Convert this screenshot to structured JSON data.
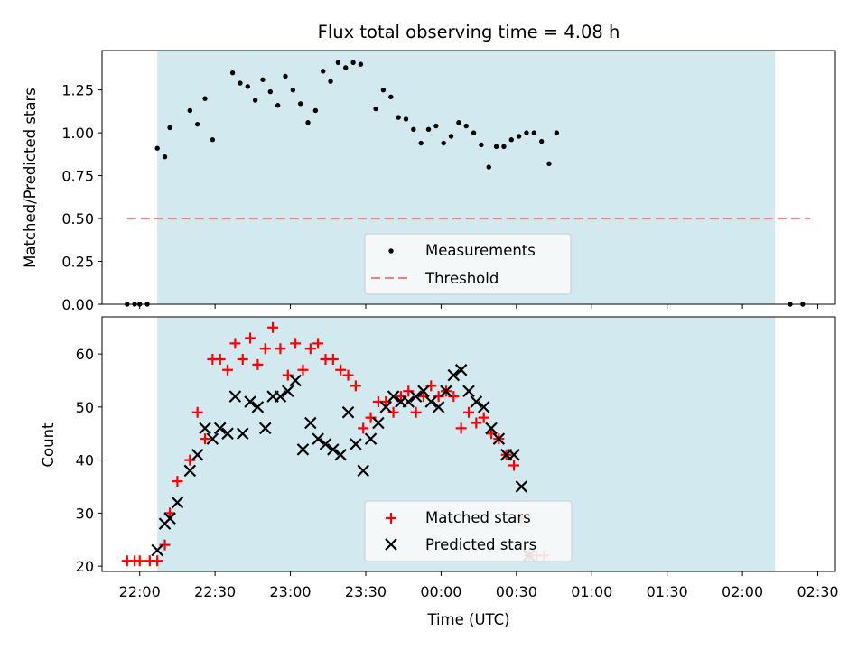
{
  "chart_data": [
    {
      "type": "scatter",
      "title": "Flux total observing time = 4.08 h",
      "ylabel": "Matched/Predicted stars",
      "xlim": [
        "21:45",
        "02:37"
      ],
      "ylim": [
        0,
        1.48
      ],
      "yticks": [
        "0.00",
        "0.25",
        "0.50",
        "0.75",
        "1.00",
        "1.25"
      ],
      "shaded_span": {
        "start": "22:07",
        "end": "02:13",
        "color": "#d3e9f0"
      },
      "threshold": {
        "value": 0.5,
        "from": "21:55",
        "to": "02:27",
        "color": "#f08080",
        "label": "Threshold"
      },
      "legend": {
        "position": "bottom-center",
        "entries": [
          "Measurements",
          "Threshold"
        ]
      },
      "series": [
        {
          "name": "Measurements",
          "marker": "dot",
          "color": "#000000",
          "points": [
            [
              "21:55",
              0.0
            ],
            [
              "21:58",
              0.0
            ],
            [
              "22:00",
              0.0
            ],
            [
              "22:03",
              0.0
            ],
            [
              "22:07",
              0.91
            ],
            [
              "22:10",
              0.86
            ],
            [
              "22:12",
              1.03
            ],
            [
              "22:20",
              1.13
            ],
            [
              "22:23",
              1.05
            ],
            [
              "22:26",
              1.2
            ],
            [
              "22:29",
              0.96
            ],
            [
              "22:37",
              1.35
            ],
            [
              "22:40",
              1.29
            ],
            [
              "22:43",
              1.27
            ],
            [
              "22:46",
              1.19
            ],
            [
              "22:49",
              1.31
            ],
            [
              "22:52",
              1.24
            ],
            [
              "22:55",
              1.16
            ],
            [
              "22:58",
              1.33
            ],
            [
              "23:01",
              1.25
            ],
            [
              "23:04",
              1.17
            ],
            [
              "23:07",
              1.06
            ],
            [
              "23:10",
              1.13
            ],
            [
              "23:13",
              1.36
            ],
            [
              "23:16",
              1.3
            ],
            [
              "23:19",
              1.41
            ],
            [
              "23:22",
              1.38
            ],
            [
              "23:25",
              1.41
            ],
            [
              "23:28",
              1.4
            ],
            [
              "23:34",
              1.14
            ],
            [
              "23:37",
              1.25
            ],
            [
              "23:40",
              1.21
            ],
            [
              "23:43",
              1.09
            ],
            [
              "23:46",
              1.08
            ],
            [
              "23:49",
              1.02
            ],
            [
              "23:52",
              0.94
            ],
            [
              "23:55",
              1.02
            ],
            [
              "23:58",
              1.04
            ],
            [
              "00:01",
              0.94
            ],
            [
              "00:04",
              0.98
            ],
            [
              "00:07",
              1.06
            ],
            [
              "00:10",
              1.04
            ],
            [
              "00:13",
              1.0
            ],
            [
              "00:16",
              0.93
            ],
            [
              "00:19",
              0.8
            ],
            [
              "00:22",
              0.92
            ],
            [
              "00:25",
              0.92
            ],
            [
              "00:28",
              0.96
            ],
            [
              "00:31",
              0.98
            ],
            [
              "00:34",
              1.0
            ],
            [
              "00:37",
              1.0
            ],
            [
              "00:40",
              0.95
            ],
            [
              "00:43",
              0.82
            ],
            [
              "00:46",
              1.0
            ],
            [
              "02:19",
              0.0
            ],
            [
              "02:24",
              0.0
            ]
          ]
        }
      ]
    },
    {
      "type": "scatter",
      "xlabel": "Time (UTC)",
      "ylabel": "Count",
      "xlim": [
        "21:45",
        "02:37"
      ],
      "ylim": [
        19,
        67
      ],
      "xticks": [
        "22:00",
        "22:30",
        "23:00",
        "23:30",
        "00:00",
        "00:30",
        "01:00",
        "01:30",
        "02:00",
        "02:30"
      ],
      "yticks": [
        "20",
        "30",
        "40",
        "50",
        "60"
      ],
      "shaded_span": {
        "start": "22:07",
        "end": "02:13",
        "color": "#d3e9f0"
      },
      "legend": {
        "position": "bottom-center",
        "entries": [
          "Matched stars",
          "Predicted stars"
        ]
      },
      "series": [
        {
          "name": "Matched stars",
          "marker": "plus",
          "color": "#ff0000",
          "points": [
            [
              "21:55",
              21
            ],
            [
              "21:58",
              21
            ],
            [
              "22:00",
              21
            ],
            [
              "22:04",
              21
            ],
            [
              "22:07",
              21
            ],
            [
              "22:10",
              24
            ],
            [
              "22:12",
              30
            ],
            [
              "22:15",
              36
            ],
            [
              "22:20",
              40
            ],
            [
              "22:23",
              49
            ],
            [
              "22:26",
              44
            ],
            [
              "22:29",
              59
            ],
            [
              "22:32",
              59
            ],
            [
              "22:35",
              57
            ],
            [
              "22:38",
              62
            ],
            [
              "22:41",
              59
            ],
            [
              "22:44",
              63
            ],
            [
              "22:47",
              58
            ],
            [
              "22:50",
              61
            ],
            [
              "22:53",
              65
            ],
            [
              "22:56",
              61
            ],
            [
              "22:59",
              56
            ],
            [
              "23:02",
              62
            ],
            [
              "23:05",
              57
            ],
            [
              "23:08",
              61
            ],
            [
              "23:11",
              62
            ],
            [
              "23:14",
              59
            ],
            [
              "23:17",
              59
            ],
            [
              "23:20",
              57
            ],
            [
              "23:23",
              56
            ],
            [
              "23:26",
              54
            ],
            [
              "23:29",
              46
            ],
            [
              "23:32",
              48
            ],
            [
              "23:35",
              51
            ],
            [
              "23:38",
              51
            ],
            [
              "23:41",
              49
            ],
            [
              "23:44",
              52
            ],
            [
              "23:47",
              53
            ],
            [
              "23:50",
              49
            ],
            [
              "23:53",
              52
            ],
            [
              "23:56",
              54
            ],
            [
              "23:59",
              52
            ],
            [
              "00:02",
              53
            ],
            [
              "00:05",
              52
            ],
            [
              "00:08",
              46
            ],
            [
              "00:11",
              49
            ],
            [
              "00:14",
              47
            ],
            [
              "00:17",
              48
            ],
            [
              "00:20",
              45
            ],
            [
              "00:23",
              44
            ],
            [
              "00:26",
              41
            ],
            [
              "00:29",
              39
            ],
            [
              "00:32",
              29
            ],
            [
              "00:35",
              22
            ],
            [
              "00:38",
              22
            ],
            [
              "00:41",
              22
            ]
          ]
        },
        {
          "name": "Predicted stars",
          "marker": "x",
          "color": "#000000",
          "points": [
            [
              "22:07",
              23
            ],
            [
              "22:10",
              28
            ],
            [
              "22:12",
              29
            ],
            [
              "22:15",
              32
            ],
            [
              "22:20",
              38
            ],
            [
              "22:23",
              41
            ],
            [
              "22:26",
              46
            ],
            [
              "22:29",
              44
            ],
            [
              "22:32",
              46
            ],
            [
              "22:35",
              45
            ],
            [
              "22:38",
              52
            ],
            [
              "22:41",
              45
            ],
            [
              "22:44",
              51
            ],
            [
              "22:47",
              50
            ],
            [
              "22:50",
              46
            ],
            [
              "22:53",
              52
            ],
            [
              "22:56",
              52
            ],
            [
              "22:59",
              53
            ],
            [
              "23:02",
              55
            ],
            [
              "23:05",
              42
            ],
            [
              "23:08",
              47
            ],
            [
              "23:11",
              44
            ],
            [
              "23:14",
              43
            ],
            [
              "23:17",
              42
            ],
            [
              "23:20",
              41
            ],
            [
              "23:23",
              49
            ],
            [
              "23:26",
              43
            ],
            [
              "23:29",
              38
            ],
            [
              "23:32",
              44
            ],
            [
              "23:35",
              47
            ],
            [
              "23:38",
              50
            ],
            [
              "23:41",
              52
            ],
            [
              "23:44",
              51
            ],
            [
              "23:47",
              51
            ],
            [
              "23:50",
              52
            ],
            [
              "23:53",
              53
            ],
            [
              "23:56",
              51
            ],
            [
              "23:59",
              50
            ],
            [
              "00:02",
              53
            ],
            [
              "00:05",
              56
            ],
            [
              "00:08",
              57
            ],
            [
              "00:11",
              53
            ],
            [
              "00:14",
              51
            ],
            [
              "00:17",
              50
            ],
            [
              "00:20",
              46
            ],
            [
              "00:23",
              44
            ],
            [
              "00:26",
              41
            ],
            [
              "00:29",
              41
            ],
            [
              "00:32",
              35
            ],
            [
              "00:35",
              22
            ]
          ]
        }
      ]
    }
  ]
}
